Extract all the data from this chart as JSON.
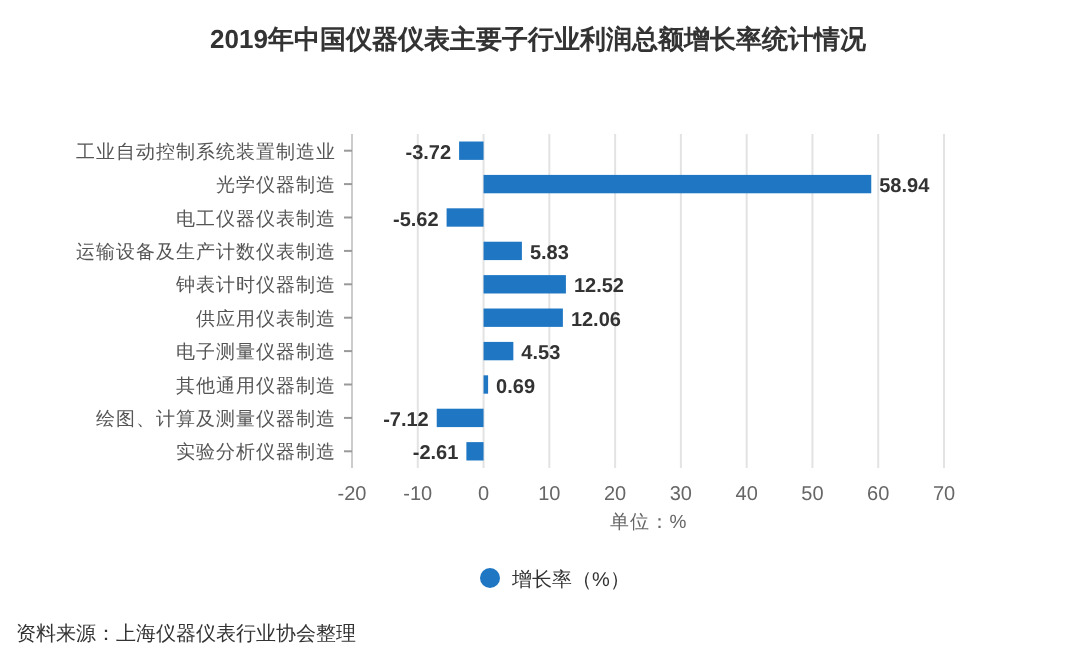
{
  "chart_data": {
    "type": "bar",
    "orientation": "horizontal",
    "title": "2019年中国仪器仪表主要子行业利润总额增长率统计情况",
    "categories": [
      "工业自动控制系统装置制造业",
      "光学仪器制造",
      "电工仪器仪表制造",
      "运输设备及生产计数仪表制造",
      "钟表计时仪器制造",
      "供应用仪表制造",
      "电子测量仪器制造",
      "其他通用仪器制造",
      "绘图、计算及测量仪器制造",
      "实验分析仪器制造"
    ],
    "series": [
      {
        "name": "增长率（%）",
        "color": "#1f77c4",
        "values": [
          -3.72,
          58.94,
          -5.62,
          5.83,
          12.52,
          12.06,
          4.53,
          0.69,
          -7.12,
          -2.61
        ]
      }
    ],
    "xlim": [
      -20,
      70
    ],
    "xticks": [
      -20,
      -10,
      0,
      10,
      20,
      30,
      40,
      50,
      60,
      70
    ],
    "xlabel": "单位：%",
    "grid": "x",
    "legend": "bottom",
    "data_labels": true,
    "annotations": [
      "资料来源：上海仪器仪表行业协会整理"
    ]
  }
}
